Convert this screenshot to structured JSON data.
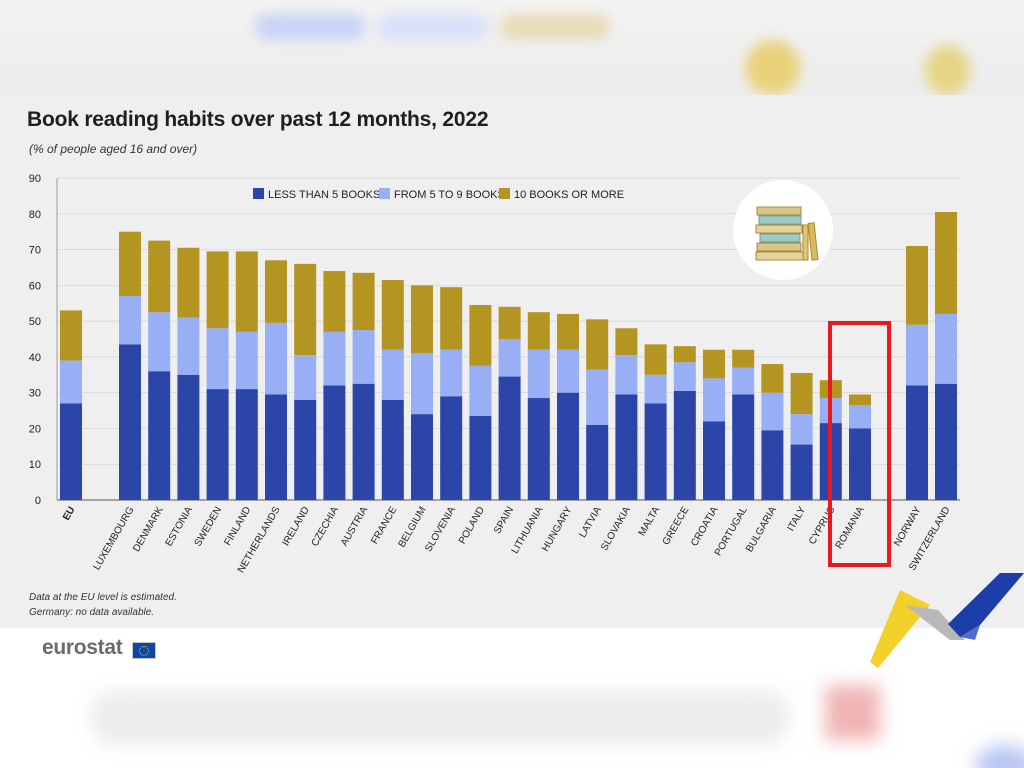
{
  "colors": {
    "less_than_5": "#2b45a8",
    "from_5_to_9": "#98aef5",
    "ten_or_more": "#b59522",
    "highlight": "#e8191f"
  },
  "chart_data": {
    "type": "bar",
    "stacked": true,
    "title": "Book reading habits over past 12 months, 2022",
    "subtitle": "(% of people aged 16 and over)",
    "ylim": [
      0,
      90
    ],
    "yticks": [
      0,
      10,
      20,
      30,
      40,
      50,
      60,
      70,
      80,
      90
    ],
    "grid": true,
    "legend_position": "top-center",
    "categories": [
      "EU",
      "LUXEMBOURG",
      "DENMARK",
      "ESTONIA",
      "SWEDEN",
      "FINLAND",
      "NETHERLANDS",
      "IRELAND",
      "CZECHIA",
      "AUSTRIA",
      "FRANCE",
      "BELGIUM",
      "SLOVENIA",
      "POLAND",
      "SPAIN",
      "LITHUANIA",
      "HUNGARY",
      "LATVIA",
      "SLOVAKIA",
      "MALTA",
      "GREECE",
      "CROATIA",
      "PORTUGAL",
      "BULGARIA",
      "ITALY",
      "CYPRUS",
      "ROMANIA",
      "NORWAY",
      "SWITZERLAND"
    ],
    "series": [
      {
        "name": "LESS THAN 5 BOOKS",
        "values": [
          27,
          43.5,
          36,
          35,
          31,
          31,
          29.5,
          28,
          32,
          32.5,
          28,
          24,
          29,
          23.5,
          34.5,
          28.5,
          30,
          21,
          29.5,
          27,
          30.5,
          22,
          29.5,
          19.5,
          15.5,
          21.5,
          20,
          32,
          32.5
        ]
      },
      {
        "name": "FROM 5 TO 9 BOOKS",
        "values": [
          12,
          13.5,
          16.5,
          16,
          17,
          16,
          20,
          12.5,
          15,
          15,
          14,
          17,
          13,
          14,
          10.5,
          13.5,
          12,
          15.5,
          11,
          8,
          8,
          12,
          7.5,
          10.5,
          8.5,
          7,
          6.5,
          17,
          19.5
        ]
      },
      {
        "name": "10 BOOKS OR MORE",
        "values": [
          14,
          18,
          20,
          19.5,
          21.5,
          22.5,
          17.5,
          25.5,
          17,
          16,
          19.5,
          19,
          17.5,
          17,
          9,
          10.5,
          10,
          14,
          7.5,
          8.5,
          4.5,
          8,
          5,
          8,
          11.5,
          5,
          3,
          22,
          28.5
        ]
      }
    ],
    "highlighted_category": "ROMANIA"
  },
  "notes": [
    "Data at the EU level is estimated.",
    "Germany: no data available."
  ],
  "footer": {
    "logo": "eurostat"
  },
  "icons": [
    "books-icon",
    "eu-flag-icon"
  ]
}
